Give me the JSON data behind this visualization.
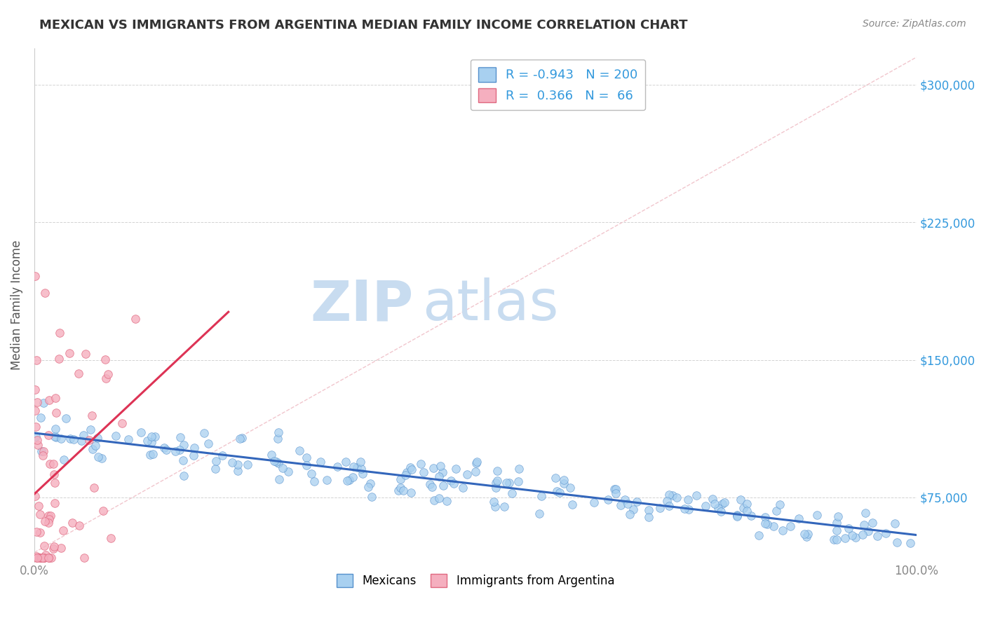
{
  "title": "MEXICAN VS IMMIGRANTS FROM ARGENTINA MEDIAN FAMILY INCOME CORRELATION CHART",
  "source_text": "Source: ZipAtlas.com",
  "ylabel": "Median Family Income",
  "x_min": 0.0,
  "x_max": 1.0,
  "y_min": 40000,
  "y_max": 320000,
  "yticks": [
    75000,
    150000,
    225000,
    300000
  ],
  "ytick_labels": [
    "$75,000",
    "$150,000",
    "$225,000",
    "$300,000"
  ],
  "blue_R": -0.943,
  "blue_N": 200,
  "pink_R": 0.366,
  "pink_N": 66,
  "blue_color": "#A8D0F0",
  "pink_color": "#F5AFBF",
  "blue_edge": "#5590CC",
  "pink_edge": "#E06880",
  "blue_line_color": "#3366BB",
  "pink_line_color": "#DD3355",
  "ref_line_color": "#F0C0C8",
  "watermark_zip": "ZIP",
  "watermark_atlas": "atlas",
  "watermark_color": "#C8DCF0",
  "background_color": "#FFFFFF",
  "legend_box_color": "#FFFFFF",
  "title_color": "#333333",
  "axis_label_color": "#555555",
  "tick_color": "#888888",
  "right_tick_color": "#3399DD",
  "grid_color": "#C8C8C8",
  "legend_text_color": "#3399DD"
}
